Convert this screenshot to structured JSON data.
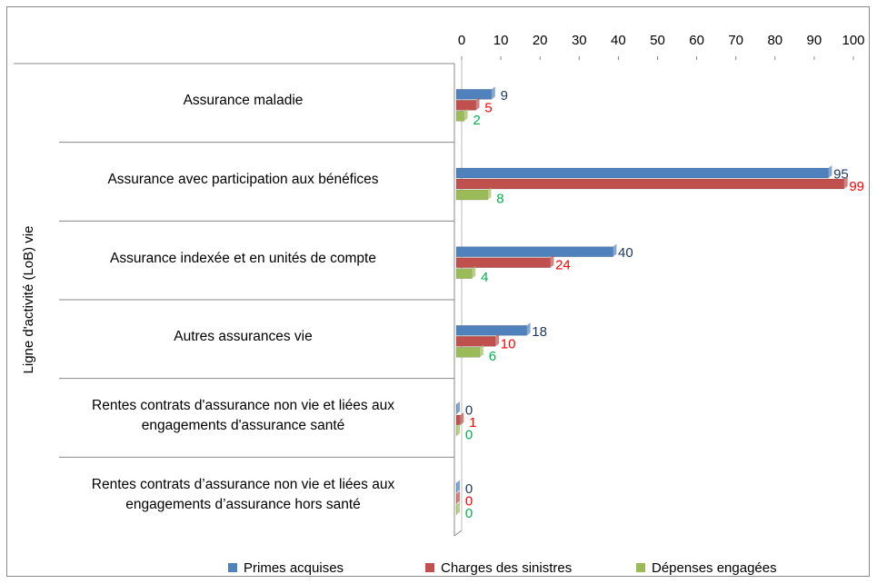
{
  "chart_data": {
    "type": "hbar",
    "y_axis_label": "Ligne d'activité (LoB) vie",
    "categories": [
      "Assurance maladie",
      "Assurance avec participation aux bénéfices",
      "Assurance indexée et en unités de compte",
      "Autres assurances vie",
      "Rentes contrats d'assurance non vie et liées aux\nengagements d'assurance santé",
      "Rentes contrats d’assurance non vie et liées aux\nengagements d’assurance hors santé"
    ],
    "series": [
      {
        "name": "Primes acquises",
        "color": "#4f81bd",
        "label_color": "#1f3864",
        "values": [
          9,
          95,
          40,
          18,
          0,
          0
        ]
      },
      {
        "name": "Charges des sinistres",
        "color": "#c0504d",
        "label_color": "#ff0000",
        "values": [
          5,
          99,
          24,
          10,
          1,
          0
        ]
      },
      {
        "name": "Dépenses engagées",
        "color": "#9bbb59",
        "label_color": "#00b050",
        "values": [
          2,
          8,
          4,
          6,
          0,
          0
        ]
      }
    ],
    "xlim": [
      0,
      100
    ],
    "xticks": [
      0,
      10,
      20,
      30,
      40,
      50,
      60,
      70,
      80,
      90,
      100
    ],
    "legend": "bottom"
  }
}
